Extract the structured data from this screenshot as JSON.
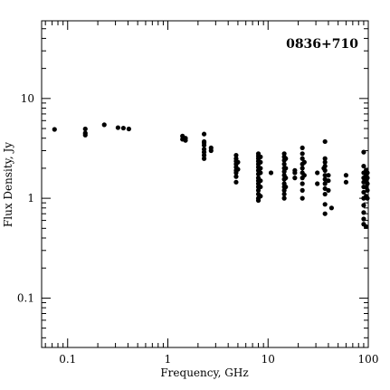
{
  "chart_data": {
    "type": "scatter",
    "title": "0836+710",
    "xlabel": "Frequency, GHz",
    "ylabel": "Flux Density, Jy",
    "xscale": "log",
    "yscale": "log",
    "xlim": [
      0.055,
      100
    ],
    "ylim": [
      0.032,
      60
    ],
    "x_ticks": [
      {
        "value": 0.1,
        "label": "0.1"
      },
      {
        "value": 1,
        "label": "1"
      },
      {
        "value": 10,
        "label": "10"
      },
      {
        "value": 100,
        "label": "100"
      }
    ],
    "y_ticks": [
      {
        "value": 0.1,
        "label": "0.1"
      },
      {
        "value": 1,
        "label": "1"
      },
      {
        "value": 10,
        "label": "10"
      }
    ],
    "title_position": "top-right",
    "grid": false,
    "series": [
      {
        "points": [
          [
            0.074,
            4.9
          ],
          [
            0.15,
            4.95
          ],
          [
            0.15,
            4.5
          ],
          [
            0.15,
            4.3
          ],
          [
            0.232,
            5.45
          ],
          [
            0.318,
            5.1
          ],
          [
            0.36,
            5.05
          ],
          [
            0.408,
            4.95
          ],
          [
            1.4,
            4.2
          ],
          [
            1.4,
            3.9
          ],
          [
            1.5,
            3.8
          ],
          [
            1.5,
            4.0
          ],
          [
            2.3,
            4.4
          ],
          [
            2.3,
            3.7
          ],
          [
            2.3,
            3.4
          ],
          [
            2.3,
            3.1
          ],
          [
            2.3,
            2.9
          ],
          [
            2.3,
            2.7
          ],
          [
            2.3,
            2.5
          ],
          [
            2.3,
            3.6
          ],
          [
            2.7,
            3.2
          ],
          [
            2.7,
            3.0
          ],
          [
            4.8,
            2.7
          ],
          [
            4.8,
            2.5
          ],
          [
            4.8,
            2.35
          ],
          [
            4.8,
            2.2
          ],
          [
            4.8,
            2.05
          ],
          [
            4.8,
            1.9
          ],
          [
            4.8,
            1.8
          ],
          [
            4.8,
            1.65
          ],
          [
            4.8,
            1.45
          ],
          [
            5.0,
            2.3
          ],
          [
            5.0,
            1.95
          ],
          [
            8.0,
            2.8
          ],
          [
            8.0,
            2.65
          ],
          [
            8.0,
            2.5
          ],
          [
            8.0,
            2.35
          ],
          [
            8.0,
            2.2
          ],
          [
            8.0,
            2.05
          ],
          [
            8.0,
            1.9
          ],
          [
            8.0,
            1.75
          ],
          [
            8.0,
            1.6
          ],
          [
            8.0,
            1.5
          ],
          [
            8.0,
            1.4
          ],
          [
            8.0,
            1.3
          ],
          [
            8.0,
            1.2
          ],
          [
            8.0,
            1.1
          ],
          [
            8.0,
            1.0
          ],
          [
            8.0,
            0.95
          ],
          [
            8.4,
            2.6
          ],
          [
            8.4,
            2.3
          ],
          [
            8.4,
            2.0
          ],
          [
            8.4,
            1.8
          ],
          [
            8.4,
            1.5
          ],
          [
            8.4,
            1.3
          ],
          [
            8.4,
            1.05
          ],
          [
            10.7,
            1.8
          ],
          [
            14.5,
            2.8
          ],
          [
            14.5,
            2.6
          ],
          [
            14.5,
            2.4
          ],
          [
            14.5,
            2.2
          ],
          [
            14.5,
            2.0
          ],
          [
            14.5,
            1.85
          ],
          [
            14.5,
            1.7
          ],
          [
            14.5,
            1.55
          ],
          [
            14.5,
            1.4
          ],
          [
            14.5,
            1.3
          ],
          [
            14.5,
            1.2
          ],
          [
            14.5,
            1.1
          ],
          [
            14.5,
            1.0
          ],
          [
            15.0,
            2.5
          ],
          [
            15.0,
            2.0
          ],
          [
            15.0,
            1.6
          ],
          [
            15.0,
            1.3
          ],
          [
            18.5,
            1.8
          ],
          [
            18.5,
            1.6
          ],
          [
            18.5,
            1.9
          ],
          [
            22.0,
            3.2
          ],
          [
            22.0,
            2.8
          ],
          [
            22.0,
            2.5
          ],
          [
            22.0,
            2.2
          ],
          [
            22.0,
            2.0
          ],
          [
            22.0,
            1.8
          ],
          [
            22.0,
            1.6
          ],
          [
            22.0,
            1.4
          ],
          [
            22.0,
            1.2
          ],
          [
            22.0,
            1.0
          ],
          [
            23.0,
            2.3
          ],
          [
            23.0,
            1.7
          ],
          [
            31.0,
            1.8
          ],
          [
            31.0,
            1.4
          ],
          [
            37.0,
            3.7
          ],
          [
            37.0,
            2.5
          ],
          [
            37.0,
            2.3
          ],
          [
            37.0,
            2.1
          ],
          [
            37.0,
            1.9
          ],
          [
            37.0,
            1.7
          ],
          [
            37.0,
            1.55
          ],
          [
            37.0,
            1.4
          ],
          [
            37.0,
            1.25
          ],
          [
            37.0,
            1.1
          ],
          [
            37.0,
            0.87
          ],
          [
            37.0,
            0.7
          ],
          [
            36.0,
            2.0
          ],
          [
            40.0,
            1.7
          ],
          [
            40.0,
            1.5
          ],
          [
            40.0,
            1.2
          ],
          [
            43.0,
            0.8
          ],
          [
            60.0,
            1.7
          ],
          [
            60.0,
            1.45
          ],
          [
            90.0,
            2.9
          ],
          [
            90.0,
            2.1
          ],
          [
            90.0,
            1.8
          ],
          [
            90.0,
            1.6
          ],
          [
            90.0,
            1.45
          ],
          [
            90.0,
            1.3
          ],
          [
            90.0,
            1.15
          ],
          [
            90.0,
            1.0
          ],
          [
            90.0,
            0.85
          ],
          [
            90.0,
            0.72
          ],
          [
            90.0,
            0.62
          ],
          [
            90.0,
            0.55
          ],
          [
            95.0,
            1.9
          ],
          [
            95.0,
            1.7
          ],
          [
            95.0,
            1.5
          ],
          [
            95.0,
            1.3
          ],
          [
            95.0,
            1.05
          ],
          [
            95.0,
            0.52
          ],
          [
            100.0,
            1.8
          ],
          [
            100.0,
            1.6
          ],
          [
            100.0,
            1.4
          ],
          [
            100.0,
            1.2
          ],
          [
            100.0,
            1.0
          ]
        ]
      }
    ]
  }
}
